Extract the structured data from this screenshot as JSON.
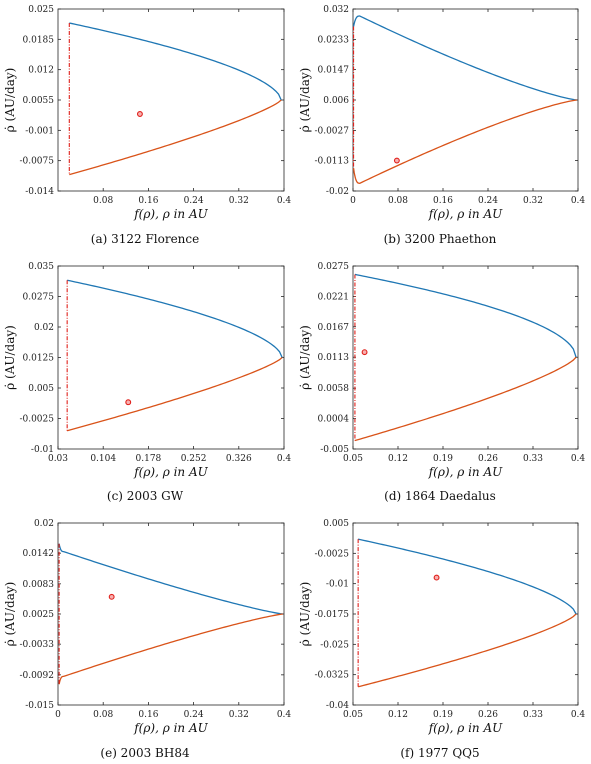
{
  "colors": {
    "upper_curve": "#1f77b4",
    "lower_curve": "#d95319",
    "boundary_line": "#e0201b",
    "point": "#e0201b"
  },
  "chart_data": [
    {
      "type": "line",
      "caption": "(a) 3122 Florence",
      "xlabel": "f(ρ), ρ in AU",
      "ylabel": "ρ̇ (AU/day)",
      "xlim": [
        0,
        0.4
      ],
      "ylim": [
        -0.014,
        0.025
      ],
      "x_ticks": [
        0.08,
        0.16,
        0.24,
        0.32,
        0.4
      ],
      "x_tick_labels": [
        "0.08",
        "0.16",
        "0.24",
        "0.32",
        "0.4"
      ],
      "y_ticks": [
        0.025,
        0.0185,
        0.012,
        0.0055,
        -0.001,
        -0.0075,
        -0.014
      ],
      "y_tick_labels": [
        "0.025",
        "0.0185",
        "0.012",
        "0.0055",
        "-0.001",
        "-0.0075",
        "-0.014"
      ],
      "boundary_x": 0.02,
      "vertex": [
        0.395,
        0.0055
      ],
      "upper_start": [
        0.02,
        0.022
      ],
      "lower_start": [
        0.02,
        -0.0105
      ],
      "upper_shape": 1.7,
      "lower_shape": 1.25,
      "hook": null,
      "point": [
        0.145,
        0.0025
      ]
    },
    {
      "type": "line",
      "caption": "(b) 3200 Phaethon",
      "xlabel": "f(ρ), ρ in AU",
      "ylabel": "ρ̇ (AU/day)",
      "xlim": [
        0,
        0.4
      ],
      "ylim": [
        -0.02,
        0.032
      ],
      "x_ticks": [
        0,
        0.08,
        0.16,
        0.24,
        0.32,
        0.4
      ],
      "x_tick_labels": [
        "0",
        "0.08",
        "0.16",
        "0.24",
        "0.32",
        "0.4"
      ],
      "y_ticks": [
        0.032,
        0.0233,
        0.0147,
        0.006,
        -0.0027,
        -0.0113,
        -0.02
      ],
      "y_tick_labels": [
        "0.032",
        "0.0233",
        "0.0147",
        "0.006",
        "-0.0027",
        "-0.0113",
        "-0.02"
      ],
      "boundary_x": 0.001,
      "vertex": [
        0.398,
        0.006
      ],
      "upper_start": [
        0.001,
        0.027
      ],
      "lower_start": [
        0.001,
        -0.0135
      ],
      "upper_shape": 0.8,
      "lower_shape": 0.8,
      "hook": {
        "upper": [
          0.012,
          0.03
        ],
        "lower": [
          0.012,
          -0.0178
        ]
      },
      "point": [
        0.078,
        -0.0113
      ]
    },
    {
      "type": "line",
      "caption": "(c) 2003 GW",
      "xlabel": "f(ρ), ρ in AU",
      "ylabel": "ρ̇ (AU/day)",
      "xlim": [
        0.03,
        0.4
      ],
      "ylim": [
        -0.01,
        0.035
      ],
      "x_ticks": [
        0.03,
        0.104,
        0.178,
        0.252,
        0.326,
        0.4
      ],
      "x_tick_labels": [
        "0.03",
        "0.104",
        "0.178",
        "0.252",
        "0.326",
        "0.4"
      ],
      "y_ticks": [
        0.035,
        0.0275,
        0.02,
        0.0125,
        0.005,
        -0.0025,
        -0.01
      ],
      "y_tick_labels": [
        "0.035",
        "0.0275",
        "0.02",
        "0.0125",
        "0.005",
        "-0.0025",
        "-0.01"
      ],
      "boundary_x": 0.045,
      "vertex": [
        0.397,
        0.0125
      ],
      "upper_start": [
        0.045,
        0.0315
      ],
      "lower_start": [
        0.045,
        -0.0055
      ],
      "upper_shape": 1.7,
      "lower_shape": 1.25,
      "hook": null,
      "point": [
        0.145,
        0.0015
      ]
    },
    {
      "type": "line",
      "caption": "(d) 1864 Daedalus",
      "xlabel": "f(ρ), ρ in AU",
      "ylabel": "ρ̇ (AU/day)",
      "xlim": [
        0.05,
        0.4
      ],
      "ylim": [
        -0.005,
        0.0275
      ],
      "x_ticks": [
        0.05,
        0.12,
        0.19,
        0.26,
        0.33,
        0.4
      ],
      "x_tick_labels": [
        "0.05",
        "0.12",
        "0.19",
        "0.26",
        "0.33",
        "0.4"
      ],
      "y_ticks": [
        0.0275,
        0.0221,
        0.0167,
        0.0113,
        0.0058,
        0.0004,
        -0.005
      ],
      "y_tick_labels": [
        "0.0275",
        "0.0221",
        "0.0167",
        "0.0113",
        "0.0058",
        "0.0004",
        "-0.005"
      ],
      "boundary_x": 0.053,
      "vertex": [
        0.397,
        0.0113
      ],
      "upper_start": [
        0.053,
        0.026
      ],
      "lower_start": [
        0.053,
        -0.0035
      ],
      "upper_shape": 1.9,
      "lower_shape": 1.3,
      "hook": null,
      "point": [
        0.068,
        0.0122
      ]
    },
    {
      "type": "line",
      "caption": "(e) 2003 BH84",
      "xlabel": "f(ρ), ρ in AU",
      "ylabel": "ρ̇ (AU/day)",
      "xlim": [
        0,
        0.4
      ],
      "ylim": [
        -0.015,
        0.02
      ],
      "x_ticks": [
        0,
        0.08,
        0.16,
        0.24,
        0.32,
        0.4
      ],
      "x_tick_labels": [
        "0",
        "0.08",
        "0.16",
        "0.24",
        "0.32",
        "0.4"
      ],
      "y_ticks": [
        0.02,
        0.0142,
        0.0083,
        0.0025,
        -0.0033,
        -0.0092,
        -0.015
      ],
      "y_tick_labels": [
        "0.02",
        "0.0142",
        "0.0083",
        "0.0025",
        "-0.0033",
        "-0.0092",
        "-0.015"
      ],
      "boundary_x": 0.002,
      "vertex": [
        0.398,
        0.0025
      ],
      "upper_start": [
        0.002,
        0.016
      ],
      "lower_start": [
        0.002,
        -0.011
      ],
      "upper_shape": 0.85,
      "lower_shape": 0.85,
      "hook": {
        "upper": [
          0.01,
          0.0145
        ],
        "lower": [
          0.01,
          -0.0095
        ]
      },
      "point": [
        0.095,
        0.0058
      ]
    },
    {
      "type": "line",
      "caption": "(f) 1977 QQ5",
      "xlabel": "f(ρ), ρ in AU",
      "ylabel": "ρ̇ (AU/day)",
      "xlim": [
        0.05,
        0.4
      ],
      "ylim": [
        -0.04,
        0.005
      ],
      "x_ticks": [
        0.05,
        0.12,
        0.19,
        0.26,
        0.33,
        0.4
      ],
      "x_tick_labels": [
        "0.05",
        "0.12",
        "0.19",
        "0.26",
        "0.33",
        "0.4"
      ],
      "y_ticks": [
        0.005,
        -0.0025,
        -0.01,
        -0.0175,
        -0.025,
        -0.0325,
        -0.04
      ],
      "y_tick_labels": [
        "0.005",
        "-0.0025",
        "-0.01",
        "-0.0175",
        "-0.025",
        "-0.0325",
        "-0.04"
      ],
      "boundary_x": 0.058,
      "vertex": [
        0.397,
        -0.0175
      ],
      "upper_start": [
        0.058,
        0.001
      ],
      "lower_start": [
        0.058,
        -0.0355
      ],
      "upper_shape": 1.6,
      "lower_shape": 1.3,
      "hook": null,
      "point": [
        0.18,
        -0.0085
      ]
    }
  ]
}
